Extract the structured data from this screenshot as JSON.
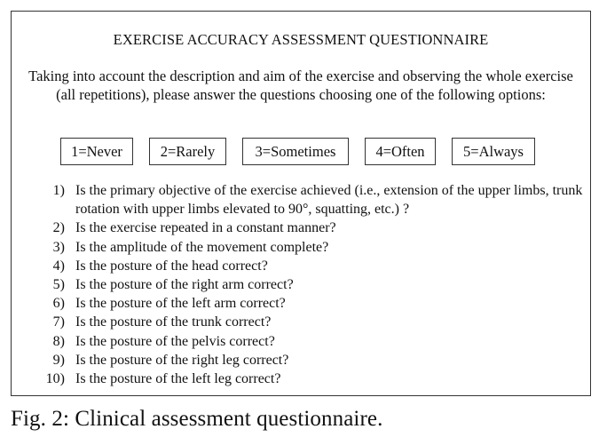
{
  "title": "EXERCISE ACCURACY ASSESSMENT QUESTIONNAIRE",
  "intro": "Taking into account the description and aim of the exercise and observing the whole exercise (all repetitions), please answer the questions choosing one of the following options:",
  "options": [
    "1=Never",
    "2=Rarely",
    "3=Sometimes",
    "4=Often",
    "5=Always"
  ],
  "questions": [
    {
      "num": "1)",
      "text": "Is the primary objective of the exercise achieved (i.e., extension of the upper limbs, trunk rotation with upper limbs elevated to 90°, squatting, etc.) ?"
    },
    {
      "num": "2)",
      "text": "Is the exercise repeated in a constant manner?"
    },
    {
      "num": "3)",
      "text": "Is the amplitude of the movement complete?"
    },
    {
      "num": "4)",
      "text": "Is the posture of the head correct?"
    },
    {
      "num": "5)",
      "text": "Is the posture of the right arm correct?"
    },
    {
      "num": "6)",
      "text": "Is the posture of the left arm correct?"
    },
    {
      "num": "7)",
      "text": "Is the posture of the trunk correct?"
    },
    {
      "num": "8)",
      "text": "Is the posture of the pelvis correct?"
    },
    {
      "num": "9)",
      "text": "Is the posture of the right leg correct?"
    },
    {
      "num": "10)",
      "text": "Is the posture of the left leg correct?"
    }
  ],
  "caption": "Fig. 2: Clinical assessment questionnaire."
}
